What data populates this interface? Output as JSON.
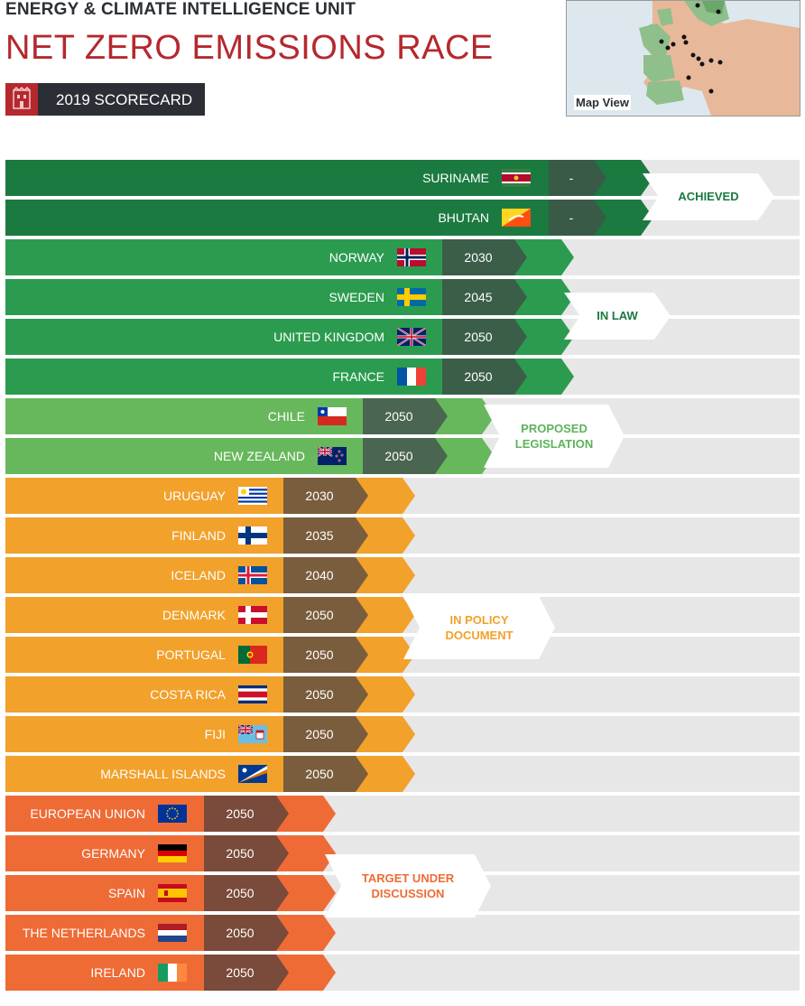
{
  "header": {
    "org": "ENERGY & CLIMATE INTELLIGENCE UNIT",
    "title": "NET ZERO EMISSIONS RACE",
    "badge_label": "2019 SCORECARD",
    "map_label": "Map View"
  },
  "categories": [
    {
      "key": "achieved",
      "label": "ACHIEVED",
      "bar_color": "#1b7a40",
      "year_color": "#3a5a48",
      "text_color": "#1b7a40"
    },
    {
      "key": "law",
      "label": "IN LAW",
      "bar_color": "#2b9c4f",
      "year_color": "#3b5e49",
      "text_color": "#1b7a40"
    },
    {
      "key": "proposed",
      "label": "PROPOSED LEGISLATION",
      "bar_color": "#67b85c",
      "year_color": "#4a6650",
      "text_color": "#5cb45a"
    },
    {
      "key": "policy",
      "label": "IN POLICY DOCUMENT",
      "bar_color": "#f2a12b",
      "year_color": "#7a5d3d",
      "text_color": "#f2a12b"
    },
    {
      "key": "discussion",
      "label": "TARGET UNDER DISCUSSION",
      "bar_color": "#ef6b35",
      "year_color": "#7a4a3a",
      "text_color": "#ef6b35"
    }
  ],
  "rows": [
    {
      "country": "SURINAME",
      "year": "-",
      "category": "achieved",
      "flag": "suriname"
    },
    {
      "country": "BHUTAN",
      "year": "-",
      "category": "achieved",
      "flag": "bhutan"
    },
    {
      "country": "NORWAY",
      "year": "2030",
      "category": "law",
      "flag": "norway"
    },
    {
      "country": "SWEDEN",
      "year": "2045",
      "category": "law",
      "flag": "sweden"
    },
    {
      "country": "UNITED KINGDOM",
      "year": "2050",
      "category": "law",
      "flag": "uk"
    },
    {
      "country": "FRANCE",
      "year": "2050",
      "category": "law",
      "flag": "france"
    },
    {
      "country": "CHILE",
      "year": "2050",
      "category": "proposed",
      "flag": "chile"
    },
    {
      "country": "NEW ZEALAND",
      "year": "2050",
      "category": "proposed",
      "flag": "newzealand"
    },
    {
      "country": "URUGUAY",
      "year": "2030",
      "category": "policy",
      "flag": "uruguay"
    },
    {
      "country": "FINLAND",
      "year": "2035",
      "category": "policy",
      "flag": "finland"
    },
    {
      "country": "ICELAND",
      "year": "2040",
      "category": "policy",
      "flag": "iceland"
    },
    {
      "country": "DENMARK",
      "year": "2050",
      "category": "policy",
      "flag": "denmark"
    },
    {
      "country": "PORTUGAL",
      "year": "2050",
      "category": "policy",
      "flag": "portugal"
    },
    {
      "country": "COSTA RICA",
      "year": "2050",
      "category": "policy",
      "flag": "costarica"
    },
    {
      "country": "FIJI",
      "year": "2050",
      "category": "policy",
      "flag": "fiji"
    },
    {
      "country": "MARSHALL ISLANDS",
      "year": "2050",
      "category": "policy",
      "flag": "marshall"
    },
    {
      "country": "EUROPEAN UNION",
      "year": "2050",
      "category": "discussion",
      "flag": "eu"
    },
    {
      "country": "GERMANY",
      "year": "2050",
      "category": "discussion",
      "flag": "germany"
    },
    {
      "country": "SPAIN",
      "year": "2050",
      "category": "discussion",
      "flag": "spain"
    },
    {
      "country": "THE NETHERLANDS",
      "year": "2050",
      "category": "discussion",
      "flag": "netherlands"
    },
    {
      "country": "IRELAND",
      "year": "2050",
      "category": "discussion",
      "flag": "ireland"
    }
  ]
}
